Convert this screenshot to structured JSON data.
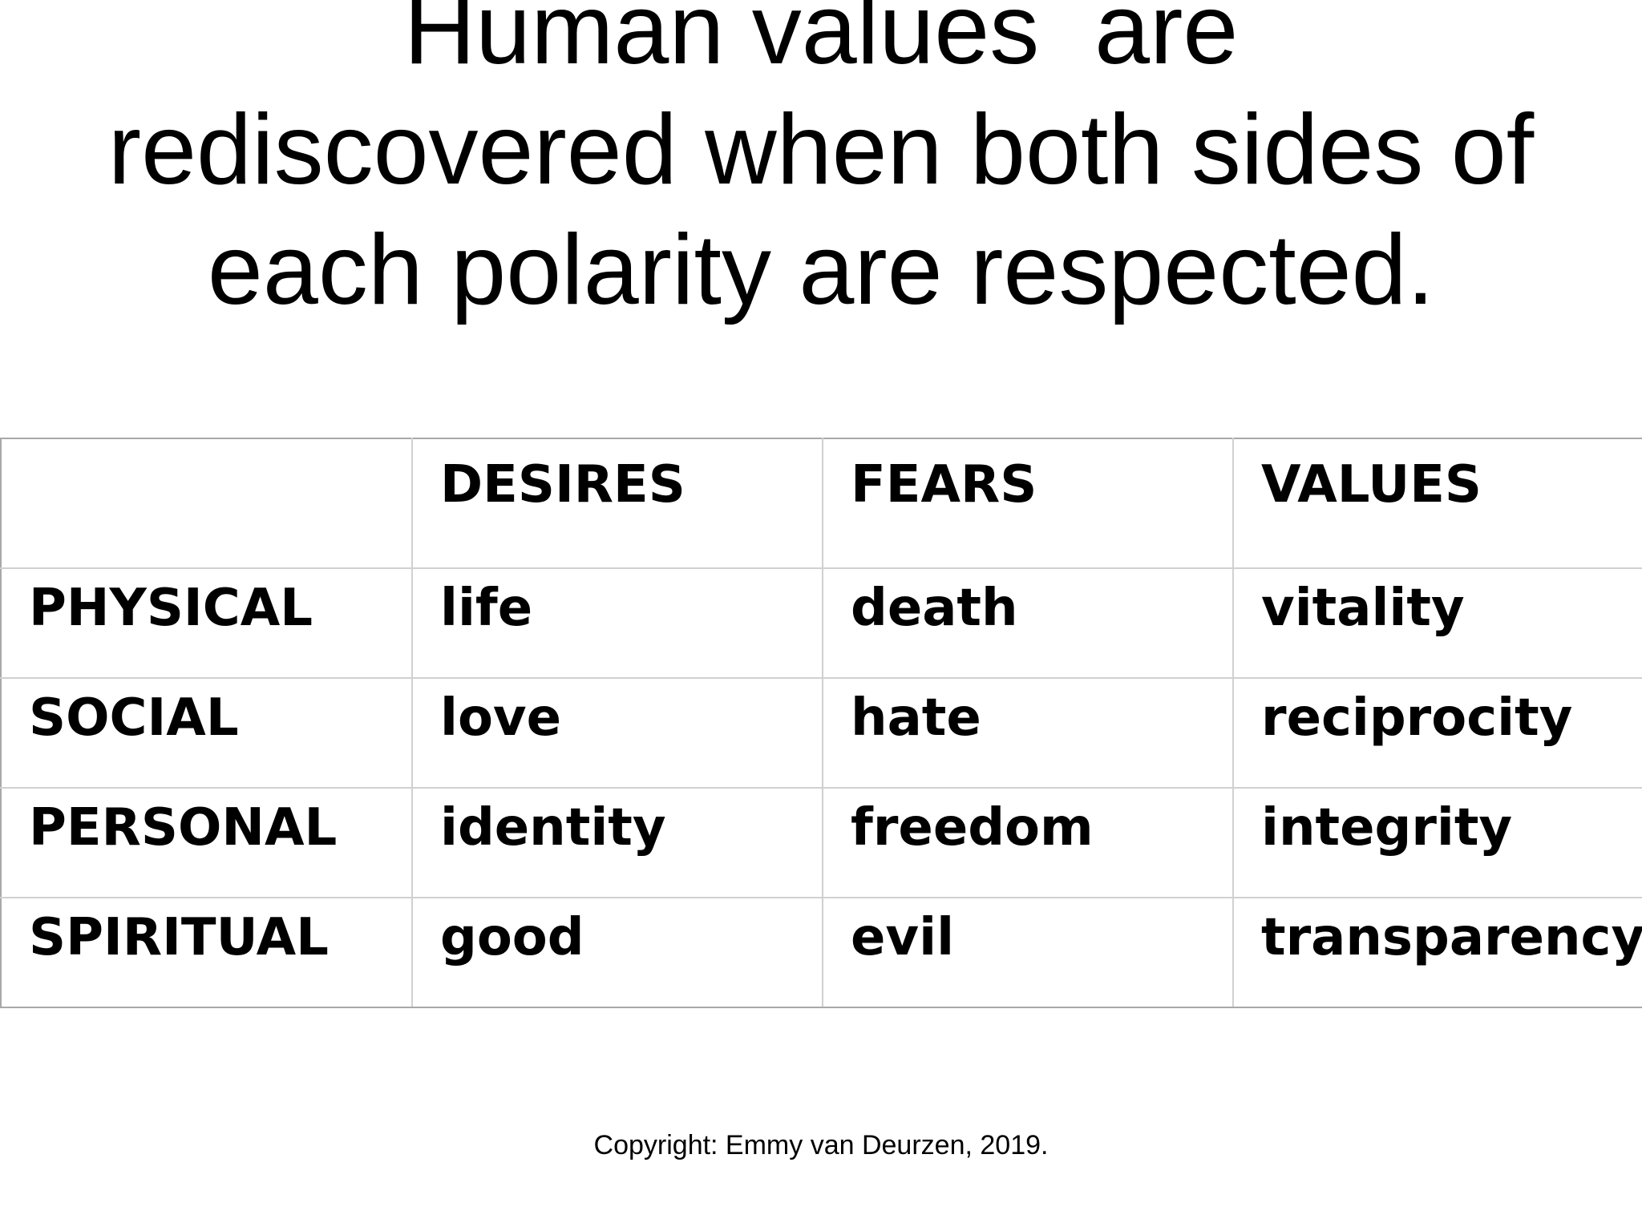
{
  "slide": {
    "title": "Human values  are\nrediscovered when both sides of\neach polarity are respected.",
    "footer": "Copyright: Emmy van Deurzen, 2019."
  },
  "table": {
    "headers": [
      "",
      "DESIRES",
      "FEARS",
      "VALUES"
    ],
    "rows": [
      [
        "PHYSICAL",
        "life",
        "death",
        "vitality"
      ],
      [
        "SOCIAL",
        "love",
        "hate",
        "reciprocity"
      ],
      [
        "PERSONAL",
        "identity",
        "freedom",
        "integrity"
      ],
      [
        "SPIRITUAL",
        "good",
        "evil",
        "transparency"
      ]
    ]
  }
}
